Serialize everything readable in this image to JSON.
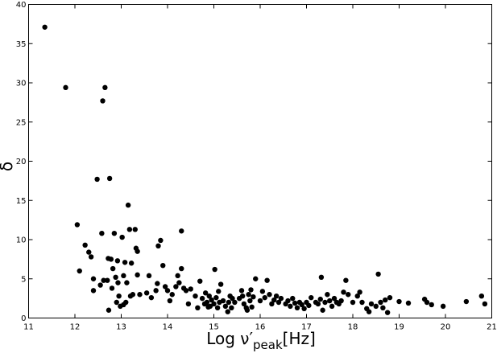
{
  "chart_data": {
    "type": "scatter",
    "title": "",
    "xlabel": {
      "main": "Log ν′",
      "sub": "peak",
      "unit": "[Hz]"
    },
    "ylabel": "δ",
    "xlim": [
      11,
      21
    ],
    "ylim": [
      0,
      40
    ],
    "xticks": [
      "11",
      "12",
      "13",
      "14",
      "15",
      "16",
      "17",
      "18",
      "19",
      "20",
      "21"
    ],
    "yticks": [
      "0",
      "5",
      "10",
      "15",
      "20",
      "25",
      "30",
      "35",
      "40"
    ],
    "grid": false,
    "marker_color": "#000000",
    "series": [
      {
        "points": [
          [
            11.35,
            37.1
          ],
          [
            11.8,
            29.4
          ],
          [
            12.05,
            11.9
          ],
          [
            12.1,
            6.0
          ],
          [
            12.22,
            9.3
          ],
          [
            12.3,
            8.4
          ],
          [
            12.35,
            7.8
          ],
          [
            12.4,
            5.0
          ],
          [
            12.4,
            3.5
          ],
          [
            12.48,
            17.7
          ],
          [
            12.55,
            4.2
          ],
          [
            12.58,
            10.8
          ],
          [
            12.6,
            27.7
          ],
          [
            12.62,
            4.8
          ],
          [
            12.65,
            29.4
          ],
          [
            12.7,
            4.8
          ],
          [
            12.72,
            7.6
          ],
          [
            12.73,
            1.0
          ],
          [
            12.75,
            17.8
          ],
          [
            12.78,
            7.5
          ],
          [
            12.8,
            3.8
          ],
          [
            12.82,
            6.3
          ],
          [
            12.85,
            10.8
          ],
          [
            12.88,
            5.2
          ],
          [
            12.9,
            2.0
          ],
          [
            12.92,
            7.3
          ],
          [
            12.93,
            4.5
          ],
          [
            12.95,
            2.8
          ],
          [
            12.98,
            1.5
          ],
          [
            13.02,
            10.3
          ],
          [
            13.05,
            5.4
          ],
          [
            13.05,
            1.7
          ],
          [
            13.08,
            7.1
          ],
          [
            13.1,
            2.0
          ],
          [
            13.12,
            4.5
          ],
          [
            13.15,
            14.4
          ],
          [
            13.18,
            11.3
          ],
          [
            13.2,
            2.8
          ],
          [
            13.22,
            7.0
          ],
          [
            13.25,
            3.0
          ],
          [
            13.3,
            11.3
          ],
          [
            13.32,
            8.9
          ],
          [
            13.35,
            8.5
          ],
          [
            13.35,
            5.5
          ],
          [
            13.4,
            3.0
          ],
          [
            13.55,
            3.2
          ],
          [
            13.6,
            5.4
          ],
          [
            13.65,
            2.6
          ],
          [
            13.75,
            3.5
          ],
          [
            13.78,
            4.4
          ],
          [
            13.8,
            9.2
          ],
          [
            13.85,
            9.9
          ],
          [
            13.9,
            6.7
          ],
          [
            13.95,
            4.0
          ],
          [
            14.0,
            3.5
          ],
          [
            14.05,
            2.2
          ],
          [
            14.1,
            3.0
          ],
          [
            14.18,
            4.0
          ],
          [
            14.22,
            5.4
          ],
          [
            14.25,
            4.5
          ],
          [
            14.3,
            6.3
          ],
          [
            14.3,
            11.1
          ],
          [
            14.35,
            3.8
          ],
          [
            14.4,
            3.5
          ],
          [
            14.45,
            1.8
          ],
          [
            14.5,
            3.7
          ],
          [
            14.6,
            2.8
          ],
          [
            14.65,
            1.3
          ],
          [
            14.7,
            4.7
          ],
          [
            14.75,
            2.5
          ],
          [
            14.8,
            1.8
          ],
          [
            14.82,
            3.2
          ],
          [
            14.85,
            2.0
          ],
          [
            14.88,
            1.4
          ],
          [
            14.9,
            2.8
          ],
          [
            14.92,
            1.5
          ],
          [
            14.95,
            2.3
          ],
          [
            15.0,
            1.8
          ],
          [
            15.02,
            6.2
          ],
          [
            15.05,
            2.6
          ],
          [
            15.08,
            1.3
          ],
          [
            15.1,
            3.4
          ],
          [
            15.12,
            2.0
          ],
          [
            15.15,
            4.3
          ],
          [
            15.2,
            2.2
          ],
          [
            15.25,
            1.5
          ],
          [
            15.3,
            0.8
          ],
          [
            15.32,
            2.0
          ],
          [
            15.35,
            2.8
          ],
          [
            15.38,
            1.3
          ],
          [
            15.4,
            2.5
          ],
          [
            15.45,
            2.0
          ],
          [
            15.55,
            2.5
          ],
          [
            15.6,
            3.5
          ],
          [
            15.62,
            2.8
          ],
          [
            15.65,
            1.8
          ],
          [
            15.7,
            1.3
          ],
          [
            15.72,
            1.0
          ],
          [
            15.75,
            3.0
          ],
          [
            15.78,
            2.2
          ],
          [
            15.8,
            3.6
          ],
          [
            15.82,
            1.4
          ],
          [
            15.85,
            2.7
          ],
          [
            15.9,
            5.0
          ],
          [
            16.0,
            2.2
          ],
          [
            16.05,
            3.4
          ],
          [
            16.1,
            2.6
          ],
          [
            16.15,
            4.8
          ],
          [
            16.2,
            3.0
          ],
          [
            16.25,
            1.8
          ],
          [
            16.3,
            2.3
          ],
          [
            16.35,
            2.8
          ],
          [
            16.4,
            2.0
          ],
          [
            16.45,
            2.5
          ],
          [
            16.55,
            1.8
          ],
          [
            16.6,
            2.2
          ],
          [
            16.65,
            1.5
          ],
          [
            16.7,
            2.5
          ],
          [
            16.75,
            1.9
          ],
          [
            16.8,
            1.3
          ],
          [
            16.85,
            2.0
          ],
          [
            16.9,
            1.7
          ],
          [
            16.95,
            1.2
          ],
          [
            17.0,
            2.0
          ],
          [
            17.05,
            1.6
          ],
          [
            17.1,
            2.6
          ],
          [
            17.2,
            2.0
          ],
          [
            17.25,
            1.8
          ],
          [
            17.3,
            2.4
          ],
          [
            17.32,
            5.2
          ],
          [
            17.35,
            1.0
          ],
          [
            17.4,
            2.0
          ],
          [
            17.45,
            3.0
          ],
          [
            17.5,
            2.2
          ],
          [
            17.55,
            1.5
          ],
          [
            17.6,
            2.5
          ],
          [
            17.65,
            2.0
          ],
          [
            17.7,
            1.8
          ],
          [
            17.75,
            2.2
          ],
          [
            17.8,
            3.3
          ],
          [
            17.85,
            4.8
          ],
          [
            17.9,
            3.0
          ],
          [
            18.0,
            2.0
          ],
          [
            18.1,
            2.8
          ],
          [
            18.15,
            3.3
          ],
          [
            18.2,
            2.0
          ],
          [
            18.3,
            1.2
          ],
          [
            18.35,
            0.8
          ],
          [
            18.4,
            1.8
          ],
          [
            18.5,
            1.5
          ],
          [
            18.55,
            5.6
          ],
          [
            18.6,
            2.0
          ],
          [
            18.65,
            1.3
          ],
          [
            18.7,
            2.3
          ],
          [
            18.75,
            0.7
          ],
          [
            18.8,
            2.6
          ],
          [
            19.0,
            2.1
          ],
          [
            19.2,
            1.9
          ],
          [
            19.55,
            2.4
          ],
          [
            19.6,
            2.0
          ],
          [
            19.7,
            1.7
          ],
          [
            19.95,
            1.5
          ],
          [
            20.45,
            2.1
          ],
          [
            20.78,
            2.8
          ],
          [
            20.85,
            1.8
          ]
        ]
      }
    ]
  }
}
